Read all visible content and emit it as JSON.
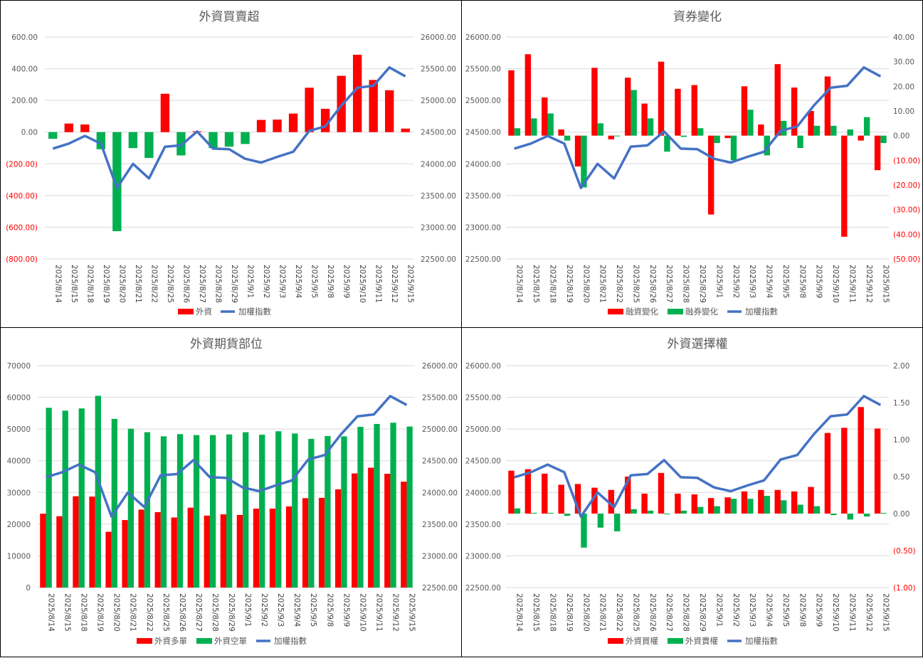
{
  "colors": {
    "red": "#ff0000",
    "green": "#00b050",
    "blue": "#4472c4",
    "grid": "#d9d9d9",
    "text": "#595959"
  },
  "chart_data": [
    {
      "id": "c1",
      "type": "bar",
      "title": "外資買賣超",
      "categories": [
        "2025/8/14",
        "2025/8/15",
        "2025/8/18",
        "2025/8/19",
        "2025/8/20",
        "2025/8/21",
        "2025/8/22",
        "2025/8/25",
        "2025/8/26",
        "2025/8/27",
        "2025/8/28",
        "2025/8/29",
        "2025/9/1",
        "2025/9/2",
        "2025/9/3",
        "2025/9/4",
        "2025/9/5",
        "2025/9/8",
        "2025/9/9",
        "2025/9/10",
        "2025/9/11",
        "2025/9/12",
        "2025/9/15"
      ],
      "y_left": {
        "min": -800,
        "max": 600,
        "step": 200,
        "decimals": 2
      },
      "y_right": {
        "min": 22500,
        "max": 26000,
        "step": 500,
        "decimals": 2
      },
      "bar_mode": "alternate",
      "series": [
        {
          "name": "外資",
          "kind": "bar",
          "axis": "left",
          "color": "#ff0000",
          "neg_color": "#00b050",
          "values": [
            -42,
            54,
            48,
            -108,
            -625,
            -101,
            -163,
            242,
            -147,
            5,
            -101,
            -92,
            -75,
            77,
            79,
            117,
            280,
            147,
            355,
            488,
            329,
            264,
            22
          ]
        },
        {
          "name": "加權指數",
          "kind": "line",
          "axis": "right",
          "color": "#4472c4",
          "values": [
            24240,
            24320,
            24440,
            24320,
            23620,
            24000,
            23770,
            24270,
            24290,
            24510,
            24240,
            24230,
            24080,
            24020,
            24110,
            24190,
            24520,
            24590,
            24920,
            25200,
            25230,
            25520,
            25380
          ]
        }
      ],
      "legend": [
        "外資",
        "加權指數"
      ]
    },
    {
      "id": "c2",
      "type": "bar",
      "title": "資券變化",
      "categories": [
        "2025/8/14",
        "2025/8/15",
        "2025/8/18",
        "2025/8/19",
        "2025/8/20",
        "2025/8/21",
        "2025/8/22",
        "2025/8/25",
        "2025/8/26",
        "2025/8/27",
        "2025/8/28",
        "2025/8/29",
        "2025/9/1",
        "2025/9/2",
        "2025/9/3",
        "2025/9/4",
        "2025/9/5",
        "2025/9/8",
        "2025/9/9",
        "2025/9/10",
        "2025/9/11",
        "2025/9/12",
        "2025/9/15"
      ],
      "y_left": {
        "min": 22500,
        "max": 26000,
        "step": 500,
        "decimals": 2
      },
      "y_right": {
        "min": -50,
        "max": 40,
        "step": 10,
        "decimals": 2
      },
      "bar_mode": "grouped",
      "series": [
        {
          "name": "融資變化",
          "kind": "bar",
          "axis": "right",
          "color": "#ff0000",
          "values": [
            26.5,
            33.0,
            15.5,
            2.5,
            -12.5,
            27.5,
            -1.5,
            23.5,
            13.0,
            30.0,
            19.0,
            20.5,
            -32.0,
            -1.0,
            20.0,
            4.5,
            29.0,
            19.5,
            10.0,
            24.0,
            -41.0,
            -2.0,
            -14.0
          ]
        },
        {
          "name": "融券變化",
          "kind": "bar",
          "axis": "right",
          "color": "#00b050",
          "values": [
            3.0,
            7.0,
            9.0,
            -2.0,
            -21.0,
            5.0,
            0,
            18.5,
            7.0,
            -6.5,
            -0.5,
            3.0,
            -3.0,
            -10.0,
            10.5,
            -8.0,
            6.0,
            -5.0,
            4.0,
            4.0,
            2.5,
            7.5,
            -3.0
          ]
        },
        {
          "name": "加權指數",
          "kind": "line",
          "axis": "left",
          "color": "#4472c4",
          "values": [
            24240,
            24320,
            24440,
            24320,
            23620,
            24000,
            23770,
            24270,
            24290,
            24510,
            24240,
            24230,
            24080,
            24020,
            24110,
            24190,
            24520,
            24590,
            24920,
            25200,
            25230,
            25520,
            25380
          ]
        }
      ],
      "legend": [
        "融資變化",
        "融券變化",
        "加權指數"
      ]
    },
    {
      "id": "c3",
      "type": "bar",
      "title": "外資期貨部位",
      "categories": [
        "2025/8/14",
        "2025/8/15",
        "2025/8/18",
        "2025/8/19",
        "2025/8/20",
        "2025/8/21",
        "2025/8/22",
        "2025/8/25",
        "2025/8/26",
        "2025/8/27",
        "2025/8/28",
        "2025/8/29",
        "2025/9/1",
        "2025/9/2",
        "2025/9/3",
        "2025/9/4",
        "2025/9/5",
        "2025/9/8",
        "2025/9/9",
        "2025/9/10",
        "2025/9/11",
        "2025/9/12",
        "2025/9/15"
      ],
      "y_left": {
        "min": 0,
        "max": 70000,
        "step": 10000,
        "decimals": 0
      },
      "y_right": {
        "min": 22500,
        "max": 26000,
        "step": 500,
        "decimals": 2
      },
      "bar_mode": "grouped",
      "series": [
        {
          "name": "外資多單",
          "kind": "bar",
          "axis": "left",
          "color": "#ff0000",
          "values": [
            23300,
            22500,
            28800,
            28700,
            17600,
            21300,
            24600,
            23800,
            22100,
            25200,
            22700,
            23100,
            22900,
            24900,
            24900,
            25600,
            28200,
            28300,
            31000,
            36000,
            37800,
            35900,
            33400
          ]
        },
        {
          "name": "外資空單",
          "kind": "bar",
          "axis": "left",
          "color": "#00b050",
          "values": [
            56700,
            55800,
            56500,
            60500,
            53200,
            50100,
            49000,
            47700,
            48400,
            48100,
            48100,
            48300,
            49000,
            48200,
            49300,
            48600,
            46900,
            47800,
            47700,
            50700,
            51600,
            52000,
            50800
          ]
        },
        {
          "name": "加權指數",
          "kind": "line",
          "axis": "right",
          "color": "#4472c4",
          "values": [
            24240,
            24320,
            24440,
            24320,
            23620,
            24000,
            23770,
            24270,
            24290,
            24510,
            24240,
            24230,
            24080,
            24020,
            24110,
            24190,
            24520,
            24590,
            24920,
            25200,
            25230,
            25520,
            25380
          ]
        }
      ],
      "legend": [
        "外資多單",
        "外資空單",
        "加權指數"
      ]
    },
    {
      "id": "c4",
      "type": "bar",
      "title": "外資選擇權",
      "categories": [
        "2025/8/14",
        "2025/8/15",
        "2025/8/18",
        "2025/8/19",
        "2025/8/20",
        "2025/8/21",
        "2025/8/22",
        "2025/8/25",
        "2025/8/26",
        "2025/8/27",
        "2025/8/28",
        "2025/8/29",
        "2025/9/1",
        "2025/9/2",
        "2025/9/3",
        "2025/9/4",
        "2025/9/5",
        "2025/9/8",
        "2025/9/9",
        "2025/9/10",
        "2025/9/11",
        "2025/9/12",
        "2025/9/15"
      ],
      "y_left": {
        "min": 22500,
        "max": 26000,
        "step": 500,
        "decimals": 2
      },
      "y_right": {
        "min": -1,
        "max": 2,
        "step": 0.5,
        "decimals": 2
      },
      "bar_mode": "grouped",
      "series": [
        {
          "name": "外資買權",
          "kind": "bar",
          "axis": "right",
          "color": "#ff0000",
          "values": [
            0.58,
            0.6,
            0.54,
            0.39,
            0.4,
            0.35,
            0.32,
            0.5,
            0.27,
            0.55,
            0.27,
            0.26,
            0.21,
            0.22,
            0.3,
            0.32,
            0.32,
            0.3,
            0.36,
            1.09,
            1.16,
            1.44,
            1.15
          ]
        },
        {
          "name": "外資賣權",
          "kind": "bar",
          "axis": "right",
          "color": "#00b050",
          "values": [
            0.07,
            0.01,
            0.01,
            -0.03,
            -0.46,
            -0.19,
            -0.24,
            0.06,
            0.04,
            0,
            0.04,
            0.09,
            0.1,
            0.2,
            0.2,
            0.24,
            0.18,
            0.12,
            0.1,
            -0.02,
            -0.08,
            -0.04,
            0.01
          ]
        },
        {
          "name": "加權指數",
          "kind": "line",
          "axis": "left",
          "color": "#4472c4",
          "values": [
            24240,
            24320,
            24440,
            24320,
            23620,
            24000,
            23770,
            24270,
            24290,
            24510,
            24240,
            24230,
            24080,
            24020,
            24110,
            24190,
            24520,
            24590,
            24920,
            25200,
            25230,
            25520,
            25380
          ]
        }
      ],
      "legend": [
        "外資買權",
        "外資賣權",
        "加權指數"
      ]
    }
  ]
}
